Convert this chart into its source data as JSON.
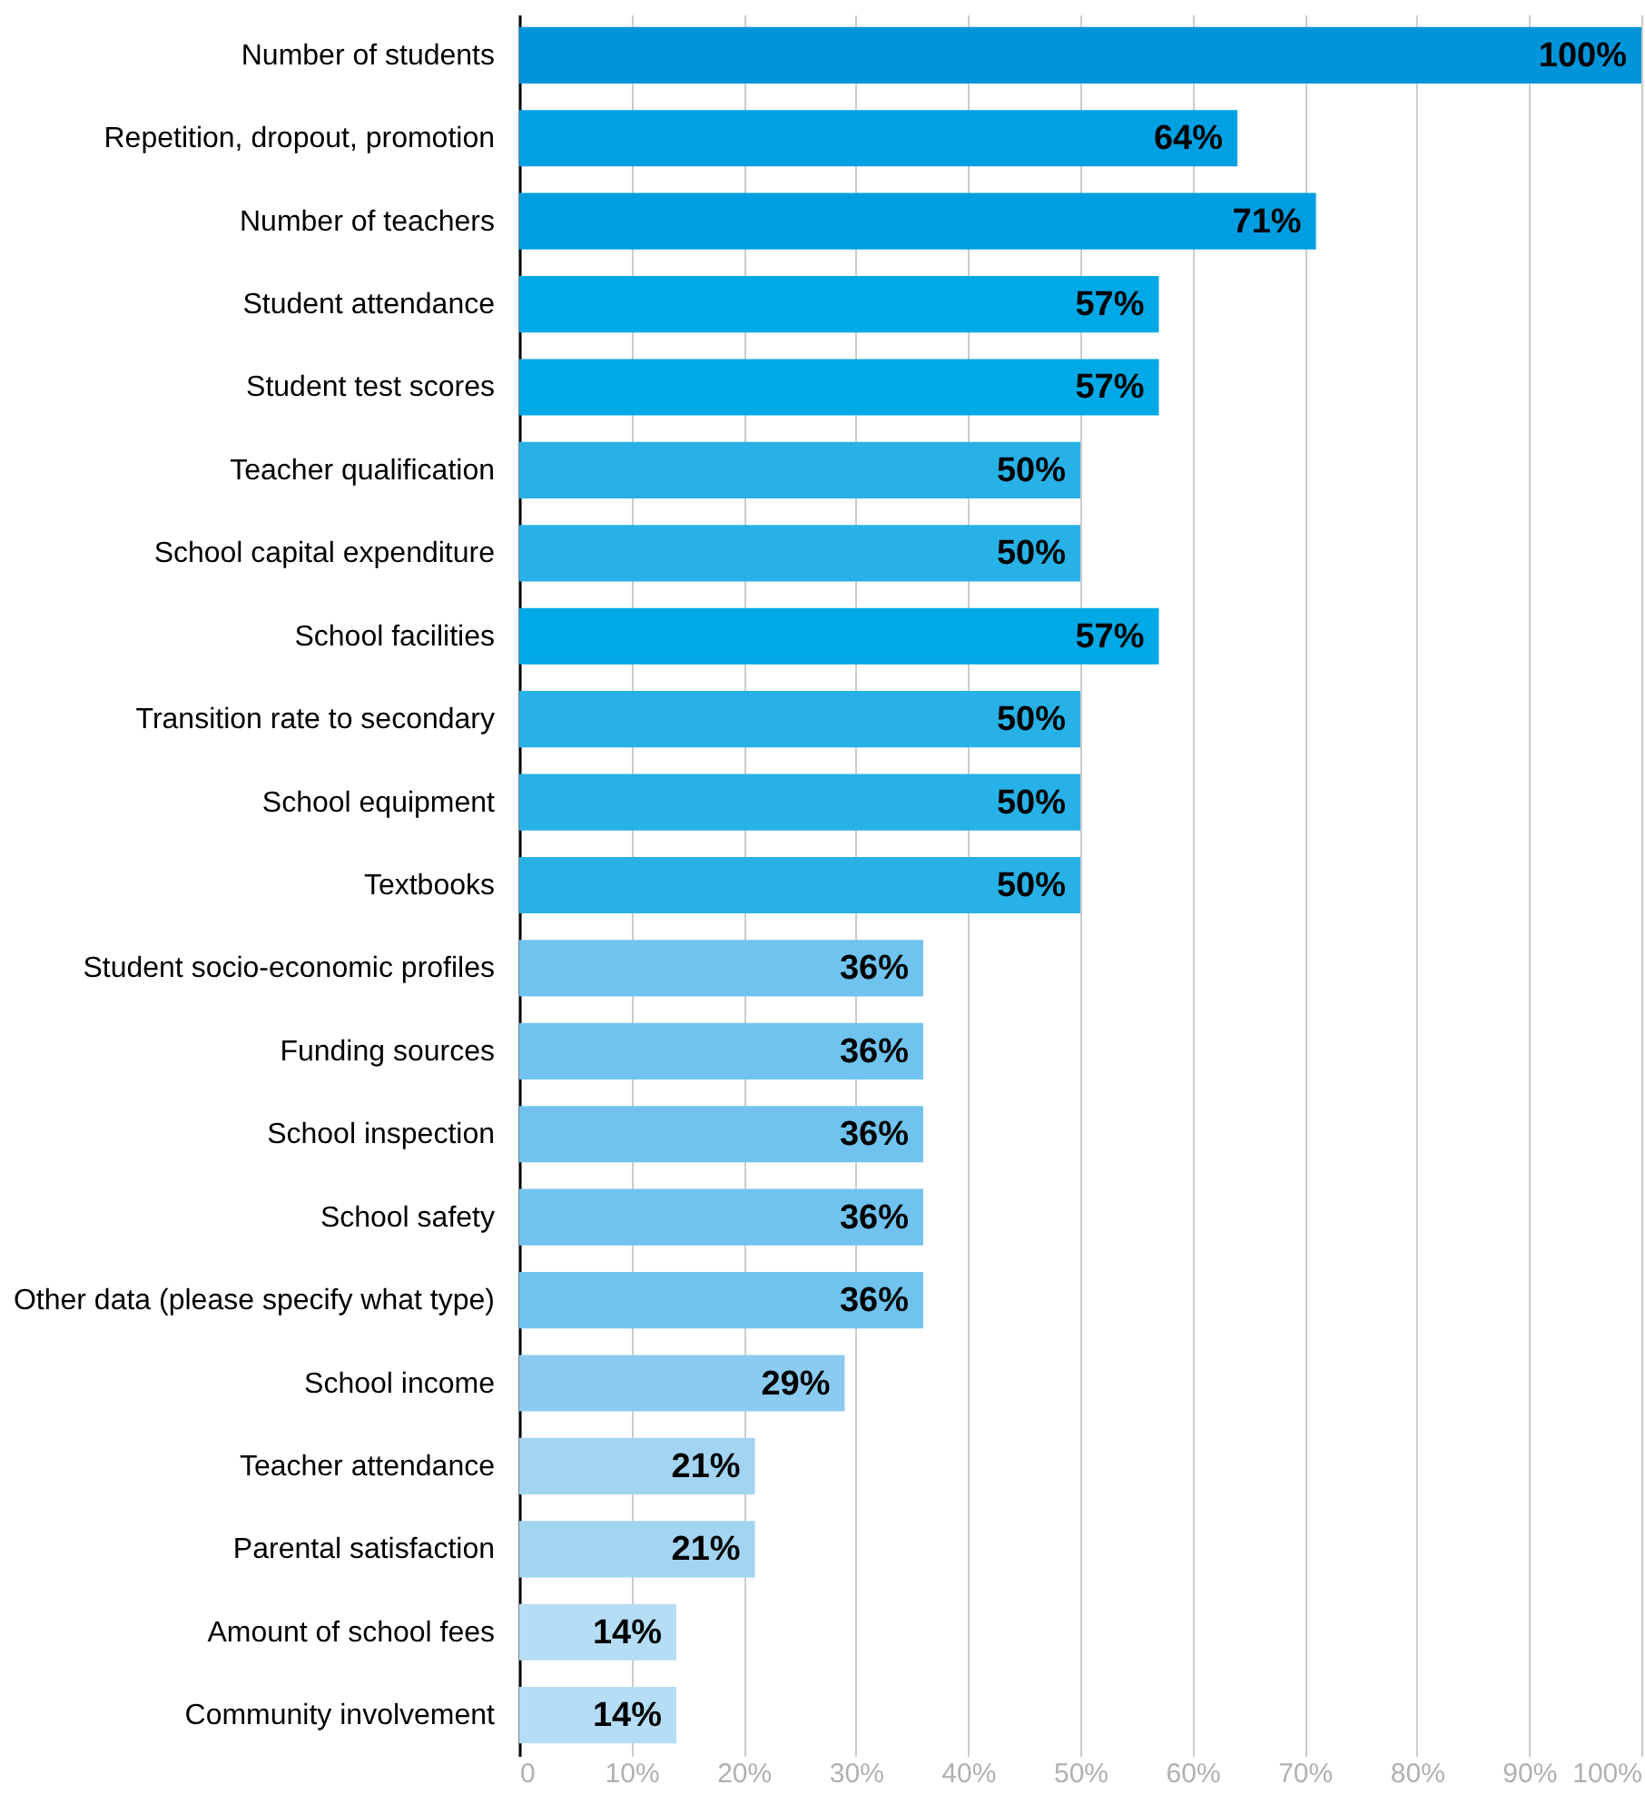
{
  "chart_data": {
    "type": "bar",
    "orientation": "horizontal",
    "categories": [
      "Number of students",
      "Repetition, dropout, promotion",
      "Number of teachers",
      "Student attendance",
      "Student test scores",
      "Teacher qualification",
      "School capital expenditure",
      "School facilities",
      "Transition rate to secondary",
      "School equipment",
      "Textbooks",
      "Student socio-economic profiles",
      "Funding sources",
      "School inspection",
      "School safety",
      "Other data (please specify what type)",
      "School income",
      "Teacher attendance",
      "Parental satisfaction",
      "Amount of school fees",
      "Community involvement"
    ],
    "values": [
      100,
      64,
      71,
      57,
      57,
      50,
      50,
      57,
      50,
      50,
      50,
      36,
      36,
      36,
      36,
      36,
      29,
      21,
      21,
      14,
      14
    ],
    "value_labels": [
      "100%",
      "64%",
      "71%",
      "57%",
      "57%",
      "50%",
      "50%",
      "57%",
      "50%",
      "50%",
      "50%",
      "36%",
      "36%",
      "36%",
      "36%",
      "36%",
      "29%",
      "21%",
      "21%",
      "14%",
      "14%"
    ],
    "colors": [
      "#0095da",
      "#00a1e2",
      "#009ee0",
      "#00a9e6",
      "#00a9e6",
      "#27b1e6",
      "#27b1e6",
      "#00a9e6",
      "#27b1e6",
      "#27b1e6",
      "#27b1e6",
      "#6fc3ee",
      "#6fc3ee",
      "#6fc3ee",
      "#6fc3ee",
      "#6fc3ee",
      "#8ccbf0",
      "#a3d4f2",
      "#a3d4f2",
      "#b5ddf5",
      "#b5ddf5"
    ],
    "xlim": [
      0,
      100
    ],
    "xticks": [
      {
        "value": 0,
        "label": "0"
      },
      {
        "value": 10,
        "label": "10%"
      },
      {
        "value": 20,
        "label": "20%"
      },
      {
        "value": 30,
        "label": "30%"
      },
      {
        "value": 40,
        "label": "40%"
      },
      {
        "value": 50,
        "label": "50%"
      },
      {
        "value": 60,
        "label": "60%"
      },
      {
        "value": 70,
        "label": "70%"
      },
      {
        "value": 80,
        "label": "80%"
      },
      {
        "value": 90,
        "label": "90%"
      },
      {
        "value": 100,
        "label": "100%"
      }
    ],
    "grid": "x"
  }
}
